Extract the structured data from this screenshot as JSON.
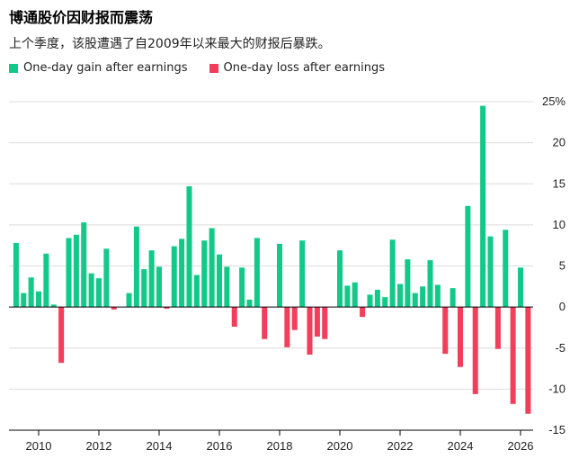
{
  "title": "博通股价因财报而震荡",
  "subtitle": "上个季度，该股遭遇了自2009年以来最大的财报后暴跌。",
  "legend": [
    {
      "label": "One-day gain after earnings",
      "color": "#12c98a"
    },
    {
      "label": "One-day loss after earnings",
      "color": "#f23d5b"
    }
  ],
  "chart_data": {
    "type": "bar",
    "x_start_year": 2009.25,
    "x_step_years": 0.25,
    "values": [
      7.8,
      1.7,
      3.6,
      1.9,
      6.5,
      0.3,
      -6.8,
      8.4,
      8.8,
      10.3,
      4.1,
      3.5,
      7.1,
      -0.3,
      0,
      1.7,
      9.8,
      4.6,
      6.9,
      4.9,
      -0.2,
      7.4,
      8.3,
      14.7,
      3.9,
      8.1,
      9.6,
      6.4,
      4.9,
      -2.4,
      4.8,
      0.9,
      8.4,
      -3.9,
      0,
      7.7,
      -4.9,
      -2.8,
      8.1,
      -5.8,
      -3.6,
      -3.9,
      0,
      6.9,
      2.6,
      3.0,
      -1.2,
      1.5,
      2.1,
      1.2,
      8.2,
      2.8,
      5.8,
      1.7,
      2.5,
      5.7,
      2.7,
      -5.7,
      2.3,
      -7.3,
      12.3,
      -10.6,
      24.5,
      8.6,
      -5.1,
      9.4,
      -11.8,
      4.8,
      -13.0
    ],
    "ylim": [
      -15,
      25
    ],
    "yticks": [
      25,
      20,
      15,
      10,
      5,
      0,
      -5,
      -10,
      -15
    ],
    "ytick_labels": [
      "25%",
      "20",
      "15",
      "10",
      "5",
      "0",
      "-5",
      "-10",
      "-15"
    ],
    "xticks": [
      2010,
      2012,
      2014,
      2016,
      2018,
      2020,
      2022,
      2024,
      2026
    ],
    "xtick_labels": [
      "2010",
      "2012",
      "2014",
      "2016",
      "2018",
      "2020",
      "2022",
      "2024",
      "2026"
    ],
    "gain_color": "#12c98a",
    "loss_color": "#f23d5b",
    "grid": true
  }
}
